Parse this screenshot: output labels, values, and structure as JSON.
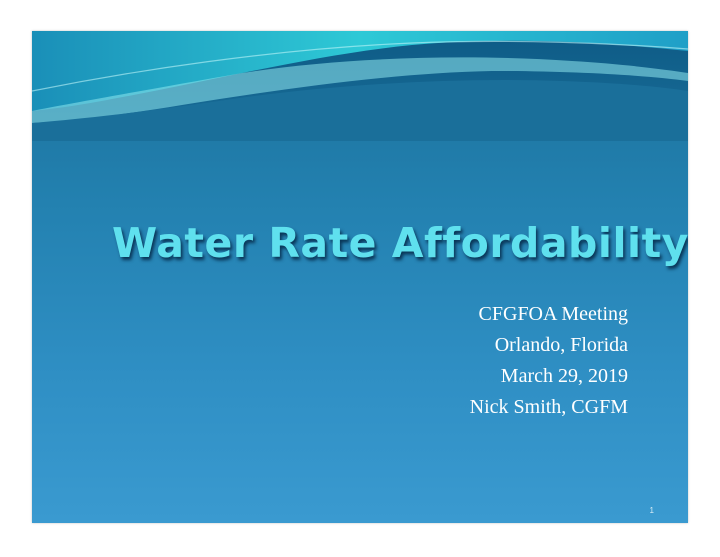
{
  "slide": {
    "title": "Water Rate Affordability",
    "subtitle_lines": [
      "CFGFOA Meeting",
      "Orlando, Florida",
      "March 29, 2019",
      "Nick Smith, CGFM"
    ],
    "page_number": "1"
  },
  "colors": {
    "background_top": "#1a6f9a",
    "background_bottom": "#3a9ad0",
    "wave_accent": "#2ec9d6",
    "title": "#5fe0ee",
    "subtitle": "#ffffff"
  }
}
